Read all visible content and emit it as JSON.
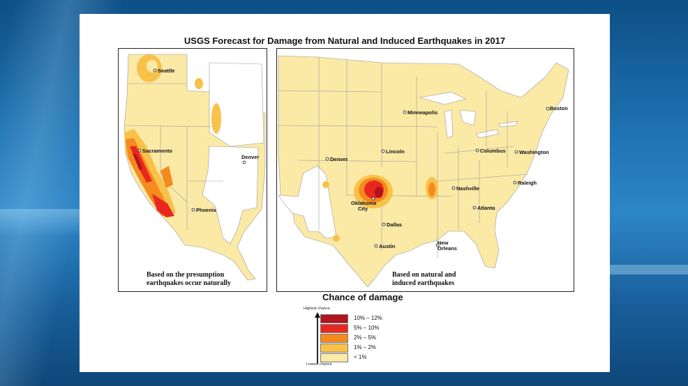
{
  "title": "USGS Forecast for Damage from Natural and Induced Earthquakes in 2017",
  "west_panel": {
    "cities": [
      "Seattle",
      "Sacramento",
      "Denver",
      "Phoenix"
    ],
    "caption_line1": "Based on the presumption",
    "caption_line2": "earthquakes occur naturally"
  },
  "east_panel": {
    "cities": [
      "Minneapolis",
      "Boston",
      "Lincoln",
      "Columbus",
      "Washington",
      "Denver",
      "Nashville",
      "Raleigh",
      "Oklahoma",
      "City",
      "Atlanta",
      "Dallas",
      "Austin",
      "New",
      "Orleans"
    ],
    "caption_line1": "Based on natural and",
    "caption_line2": "induced earthquakes"
  },
  "legend": {
    "title": "Chance of damage",
    "highest": "Highest chance",
    "lowest": "Lowest chance",
    "items": [
      {
        "label": "10% – 12%",
        "color": "#b3121e"
      },
      {
        "label": "5% – 10%",
        "color": "#e8281e"
      },
      {
        "label": "2% – 5%",
        "color": "#f58a1f"
      },
      {
        "label": "1% – 2%",
        "color": "#f8c24a"
      },
      {
        "label": "< 1%",
        "color": "#fbe9a6"
      }
    ]
  },
  "colors": {
    "base": "#fbe9a6",
    "low": "#f8c24a",
    "mid": "#f58a1f",
    "high": "#e8281e",
    "highest": "#b3121e"
  }
}
